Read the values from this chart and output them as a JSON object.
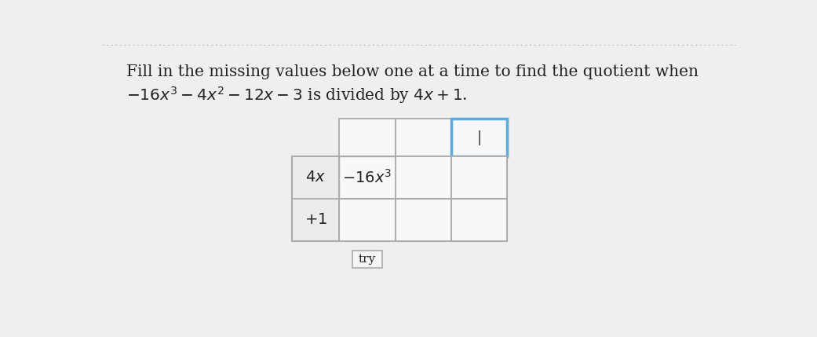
{
  "title_line1": "Fill in the missing values below one at a time to find the quotient when",
  "title_line2": "$-16x^3 - 4x^2 - 12x - 3$ is divided by $4x + 1$.",
  "background_color": "#efefef",
  "text_color": "#222222",
  "row_label_4x": "$4x$",
  "row_label_plus1": "$+1$",
  "cell_text_16x3": "$-16x^3$",
  "try_label": "try",
  "active_border_color": "#5aabdb",
  "normal_border_color": "#aaaaaa",
  "cell_bg": "#f8f8f8",
  "label_bg": "#f0f0f0",
  "cursor_text": "|",
  "dotted_line_color": "#bbbbbb"
}
